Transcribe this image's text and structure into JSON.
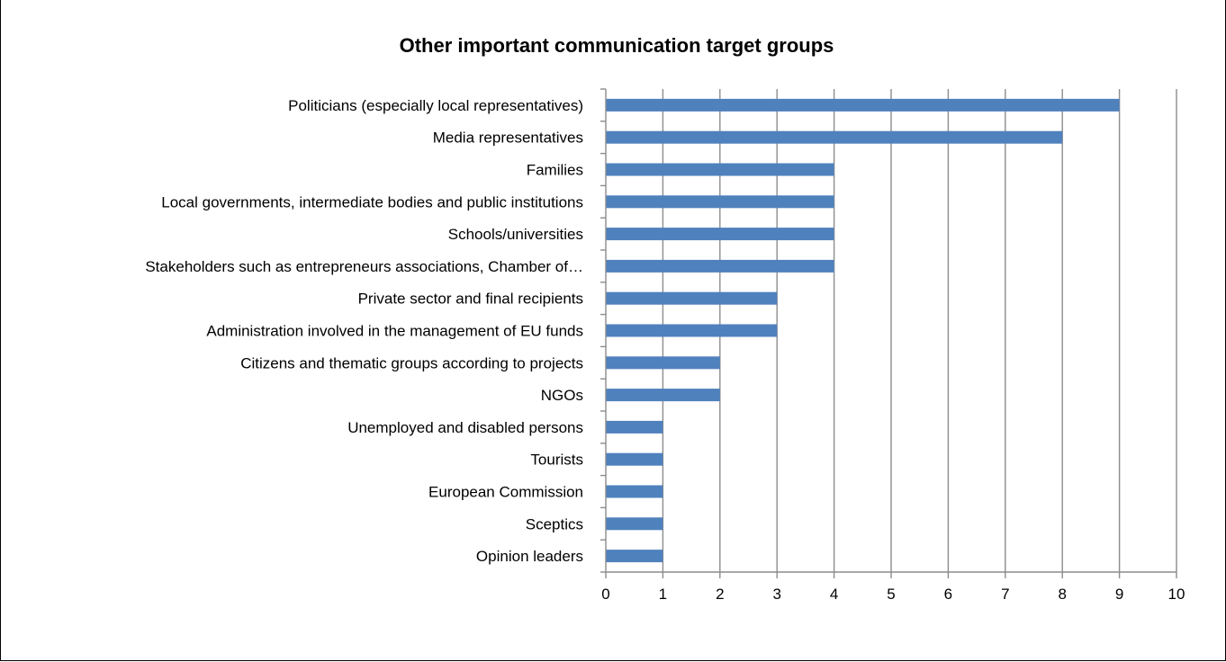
{
  "chart_data": {
    "type": "bar",
    "orientation": "horizontal",
    "title": "Other important communication target groups",
    "xlabel": "",
    "ylabel": "",
    "xlim": [
      0,
      10
    ],
    "ticks": [
      "0",
      "1",
      "2",
      "3",
      "4",
      "5",
      "6",
      "7",
      "8",
      "9",
      "10"
    ],
    "grid": true,
    "legend": "none",
    "bar_color": "#4f81bd",
    "categories": [
      "Politicians (especially local representatives)",
      "Media representatives",
      "Families",
      "Local governments, intermediate bodies and public institutions",
      "Schools/universities",
      "Stakeholders such as entrepreneurs associations, Chamber of…",
      "Private sector and final recipients",
      "Administration involved in the management of EU funds",
      "Citizens and thematic groups according to projects",
      "NGOs",
      "Unemployed and disabled persons",
      "Tourists",
      "European Commission",
      "Sceptics",
      "Opinion leaders"
    ],
    "values": [
      9,
      8,
      4,
      4,
      4,
      4,
      3,
      3,
      2,
      2,
      1,
      1,
      1,
      1,
      1
    ]
  }
}
